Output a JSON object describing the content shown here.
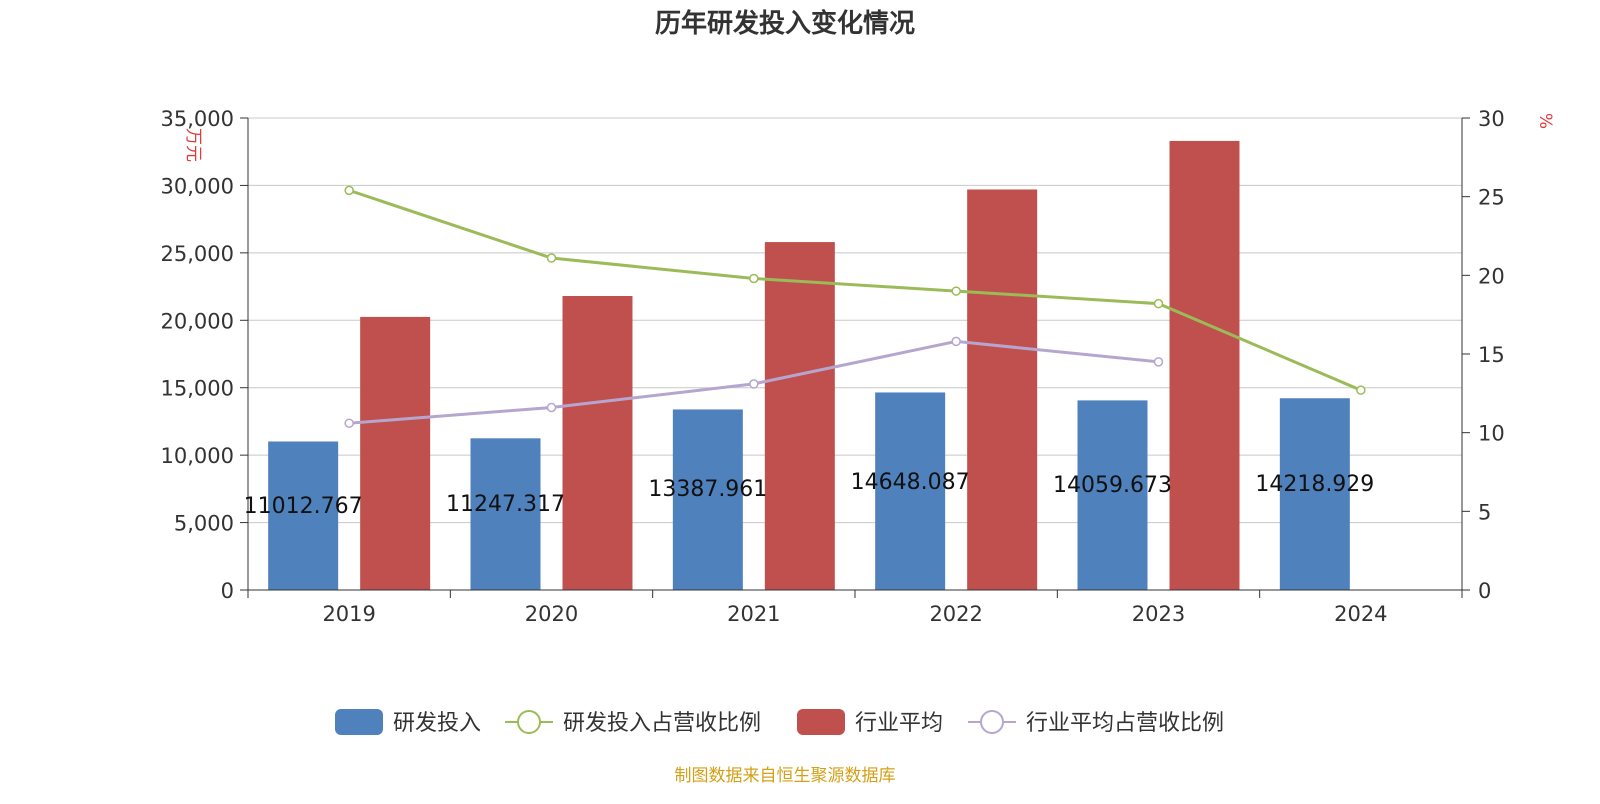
{
  "chart_data": {
    "type": "bar",
    "title": "历年研发投入变化情况",
    "source": "制图数据来自恒生聚源数据库",
    "categories": [
      "2019",
      "2020",
      "2021",
      "2022",
      "2023",
      "2024"
    ],
    "y_left": {
      "label": "万元",
      "ylim": [
        0,
        35000
      ],
      "ticks": [
        0,
        5000,
        10000,
        15000,
        20000,
        25000,
        30000,
        35000
      ],
      "tick_labels": [
        "0",
        "5,000",
        "10,000",
        "15,000",
        "20,000",
        "25,000",
        "30,000",
        "35,000"
      ]
    },
    "y_right": {
      "label": "%",
      "ylim": [
        0,
        30
      ],
      "ticks": [
        0,
        5,
        10,
        15,
        20,
        25,
        30
      ],
      "tick_labels": [
        "0",
        "5",
        "10",
        "15",
        "20",
        "25",
        "30"
      ]
    },
    "grid": true,
    "legend_position": "bottom",
    "series": [
      {
        "name": "研发投入",
        "type": "bar",
        "axis": "left",
        "color": "#4f81bd",
        "values": [
          11012.767,
          11247.317,
          13387.961,
          14648.087,
          14059.673,
          14218.929
        ],
        "data_labels": [
          "11012.767",
          "11247.317",
          "13387.961",
          "14648.087",
          "14059.673",
          "14218.929"
        ]
      },
      {
        "name": "研发投入占营收比例",
        "type": "line",
        "axis": "right",
        "color": "#9bbb59",
        "values": [
          25.4,
          21.1,
          19.8,
          19.0,
          18.2,
          12.7
        ]
      },
      {
        "name": "行业平均",
        "type": "bar",
        "axis": "left",
        "color": "#c0504d",
        "values": [
          20250,
          21800,
          25800,
          29700,
          33300,
          null
        ]
      },
      {
        "name": "行业平均占营收比例",
        "type": "line",
        "axis": "right",
        "color": "#b6a6cf",
        "values": [
          10.6,
          11.6,
          13.1,
          15.8,
          14.5,
          null
        ]
      }
    ]
  }
}
